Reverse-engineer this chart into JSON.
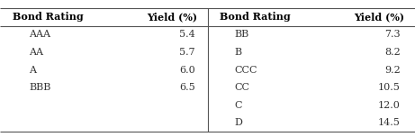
{
  "left_header": [
    "Bond Rating",
    "Yield (%)"
  ],
  "right_header": [
    "Bond Rating",
    "Yield (%)"
  ],
  "left_ratings": [
    "AAA",
    "AA",
    "A",
    "BBB"
  ],
  "left_yields": [
    "5.4",
    "5.7",
    "6.0",
    "6.5"
  ],
  "right_ratings": [
    "BB",
    "B",
    "CCC",
    "CC",
    "C",
    "D"
  ],
  "right_yields": [
    "7.3",
    "8.2",
    "9.2",
    "10.5",
    "12.0",
    "14.5"
  ],
  "background_color": "#ffffff",
  "text_color": "#333333",
  "header_color": "#000000",
  "border_color": "#555555",
  "font_size": 8.0,
  "header_font_size": 8.0,
  "fig_width": 4.61,
  "fig_height": 1.52,
  "dpi": 100
}
